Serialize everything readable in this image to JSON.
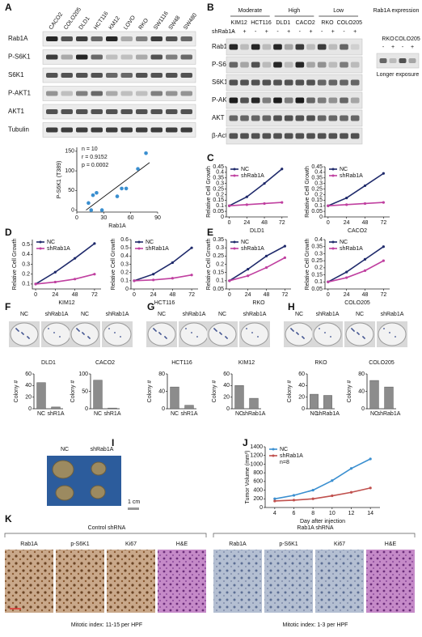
{
  "panel_labels": [
    "A",
    "B",
    "C",
    "D",
    "E",
    "F",
    "G",
    "H",
    "I",
    "J",
    "K"
  ],
  "blot_a": {
    "lanes": [
      "CACO2",
      "COLO205",
      "DLD1",
      "HCT116",
      "KM12",
      "LOVO",
      "RKO",
      "SW1116",
      "SW48",
      "SW480"
    ],
    "rows": [
      "Rab1A",
      "P-S6K1",
      "S6K1",
      "P-AKT1",
      "AKT1",
      "Tubulin"
    ]
  },
  "blot_b": {
    "groups": [
      "Moderate",
      "High",
      "Low"
    ],
    "lanes": [
      "KIM12",
      "HCT116",
      "DLD1",
      "CACO2",
      "RKO",
      "COLO205"
    ],
    "treatment": "shRab1A",
    "signs": [
      "-",
      "+",
      "-",
      "+",
      "-",
      "+",
      "-",
      "+",
      "-",
      "+",
      "-",
      "+"
    ],
    "rows": [
      "Rab1A",
      "P-S6K1",
      "S6K1",
      "P-AKT",
      "AKT",
      "β-Actin"
    ],
    "expression_title": "Rab1A expression",
    "expression_lanes": [
      "RKO",
      "COLO205"
    ],
    "expression_signs": [
      "-",
      "+",
      "-",
      "+"
    ],
    "exposure_note": "Longer exposure"
  },
  "colony_dishes": [
    [
      "NC",
      "shRab1A"
    ],
    [
      "NC",
      "shRab1A"
    ],
    [
      "NC",
      "shRab1A"
    ],
    [
      "NC",
      "shRab1A"
    ],
    [
      "NC",
      "shRab1A"
    ],
    [
      "NC",
      "shRab1A"
    ]
  ],
  "tumor_image": {
    "labels": [
      "NC",
      "shRab1A"
    ],
    "scale_bar": "1 cm"
  },
  "histology": {
    "groups": [
      {
        "title": "Control shRNA",
        "stains": [
          "Rab1A",
          "p-S6K1",
          "Ki67",
          "H&E"
        ],
        "note": "Mitotic index:  11-15 per HPF"
      },
      {
        "title": "Rab1A shRNA",
        "stains": [
          "Rab1A",
          "p-S6K1",
          "Ki67",
          "H&E"
        ],
        "note": "Mitotic index:  1-3 per HPF"
      }
    ]
  },
  "chart_data": [
    {
      "type": "scatter",
      "xlabel": "Rab1A",
      "ylabel": "P-S6K1 (T389)",
      "annotations": [
        "n = 10",
        "r = 0.9152",
        "p = 0.0002"
      ],
      "x": [
        13,
        16,
        18,
        22,
        28,
        45,
        50,
        55,
        68,
        77
      ],
      "values": [
        18,
        0,
        38,
        44,
        0,
        35,
        55,
        55,
        105,
        145
      ],
      "color": "#3a8fd0",
      "xlim": [
        0,
        90
      ],
      "xticks": [
        0,
        30,
        60,
        90
      ],
      "ylim": [
        -5,
        160
      ],
      "yticks": [
        0,
        50,
        100,
        150
      ]
    },
    {
      "type": "line",
      "xlabel": "DLD1",
      "ylabel": "Relative Cell Growth",
      "x": [
        0,
        24,
        48,
        72
      ],
      "xlim": [
        -4,
        80
      ],
      "xticks": [
        0,
        24,
        48,
        72
      ],
      "ylim": [
        0,
        0.45
      ],
      "yticks": [
        0,
        0.05,
        0.1,
        0.15,
        0.2,
        0.25,
        0.3,
        0.35,
        0.4,
        0.45
      ],
      "series": [
        {
          "name": "NC",
          "color": "#1f2a6b",
          "values": [
            0.1,
            0.18,
            0.3,
            0.43
          ]
        },
        {
          "name": "shRab1A",
          "color": "#c040a0",
          "values": [
            0.1,
            0.11,
            0.12,
            0.13
          ]
        }
      ]
    },
    {
      "type": "line",
      "xlabel": "CACO2",
      "ylabel": "Relative Cell Growth",
      "x": [
        0,
        24,
        48,
        72
      ],
      "xlim": [
        -4,
        80
      ],
      "xticks": [
        0,
        24,
        48,
        72
      ],
      "ylim": [
        0,
        0.45
      ],
      "yticks": [
        0,
        0.05,
        0.1,
        0.15,
        0.2,
        0.25,
        0.3,
        0.35,
        0.4,
        0.45
      ],
      "series": [
        {
          "name": "NC",
          "color": "#1f2a6b",
          "values": [
            0.1,
            0.17,
            0.28,
            0.39
          ]
        },
        {
          "name": "shRab1A",
          "color": "#c040a0",
          "values": [
            0.1,
            0.11,
            0.12,
            0.13
          ]
        }
      ]
    },
    {
      "type": "line",
      "xlabel": "KIM12",
      "ylabel": "Relative Cell Growth",
      "x": [
        0,
        24,
        48,
        72
      ],
      "xlim": [
        -4,
        80
      ],
      "xticks": [
        0,
        24,
        48,
        72
      ],
      "ylim": [
        0.05,
        0.55
      ],
      "yticks": [
        0.1,
        0.2,
        0.3,
        0.4,
        0.5
      ],
      "series": [
        {
          "name": "NC",
          "color": "#1f2a6b",
          "values": [
            0.1,
            0.22,
            0.36,
            0.51
          ]
        },
        {
          "name": "shRab1A",
          "color": "#c040a0",
          "values": [
            0.1,
            0.12,
            0.15,
            0.2
          ]
        }
      ]
    },
    {
      "type": "line",
      "xlabel": "HCT116",
      "ylabel": "Relative Cell Growth",
      "x": [
        0,
        24,
        48,
        72
      ],
      "xlim": [
        -4,
        80
      ],
      "xticks": [
        0,
        24,
        48,
        72
      ],
      "ylim": [
        0,
        0.6
      ],
      "yticks": [
        0,
        0.1,
        0.2,
        0.3,
        0.4,
        0.5,
        0.6
      ],
      "series": [
        {
          "name": "NC",
          "color": "#1f2a6b",
          "values": [
            0.1,
            0.18,
            0.32,
            0.5
          ]
        },
        {
          "name": "shRab1A",
          "color": "#c040a0",
          "values": [
            0.1,
            0.11,
            0.13,
            0.17
          ]
        }
      ]
    },
    {
      "type": "line",
      "xlabel": "RKO",
      "ylabel": "Relative Cell Growth",
      "x": [
        0,
        24,
        48,
        72
      ],
      "xlim": [
        -4,
        80
      ],
      "xticks": [
        0,
        24,
        48,
        72
      ],
      "ylim": [
        0.05,
        0.35
      ],
      "yticks": [
        0.05,
        0.1,
        0.15,
        0.2,
        0.25,
        0.3,
        0.35
      ],
      "series": [
        {
          "name": "NC",
          "color": "#1f2a6b",
          "values": [
            0.1,
            0.17,
            0.25,
            0.31
          ]
        },
        {
          "name": "shRab1A",
          "color": "#c040a0",
          "values": [
            0.1,
            0.13,
            0.18,
            0.24
          ]
        }
      ]
    },
    {
      "type": "line",
      "xlabel": "COLO205",
      "ylabel": "Relative Cell Growth",
      "x": [
        0,
        24,
        48,
        72
      ],
      "xlim": [
        -4,
        80
      ],
      "xticks": [
        0,
        24,
        48,
        72
      ],
      "ylim": [
        0.05,
        0.4
      ],
      "yticks": [
        0.05,
        0.1,
        0.15,
        0.2,
        0.25,
        0.3,
        0.35,
        0.4
      ],
      "series": [
        {
          "name": "NC",
          "color": "#1f2a6b",
          "values": [
            0.1,
            0.17,
            0.26,
            0.35
          ]
        },
        {
          "name": "shRab1A",
          "color": "#c040a0",
          "values": [
            0.1,
            0.13,
            0.18,
            0.25
          ]
        }
      ]
    },
    {
      "type": "bar",
      "title": "DLD1",
      "ylabel": "Colony #",
      "categories": [
        "NC",
        "shR1A"
      ],
      "values": [
        45,
        3
      ],
      "color": "#8c8c8c",
      "ylim": [
        0,
        60
      ],
      "yticks": [
        0,
        20,
        40,
        60
      ]
    },
    {
      "type": "bar",
      "title": "CACO2",
      "ylabel": "Colony #",
      "categories": [
        "NC",
        "shR1A"
      ],
      "values": [
        82,
        2
      ],
      "color": "#8c8c8c",
      "ylim": [
        0,
        100
      ],
      "yticks": [
        0,
        50,
        100
      ]
    },
    {
      "type": "bar",
      "title": "HCT116",
      "ylabel": "Colony #",
      "categories": [
        "NC",
        "shR1A"
      ],
      "values": [
        50,
        8
      ],
      "color": "#8c8c8c",
      "ylim": [
        0,
        80
      ],
      "yticks": [
        0,
        40,
        80
      ]
    },
    {
      "type": "bar",
      "title": "KIM12",
      "ylabel": "Colony #",
      "categories": [
        "NC",
        "shRab1A"
      ],
      "values": [
        40,
        18
      ],
      "color": "#8c8c8c",
      "ylim": [
        0,
        60
      ],
      "yticks": [
        0,
        20,
        40,
        60
      ]
    },
    {
      "type": "bar",
      "title": "RKO",
      "ylabel": "Colony #",
      "categories": [
        "NC",
        "shRab1A"
      ],
      "values": [
        25,
        23
      ],
      "color": "#8c8c8c",
      "ylim": [
        0,
        60
      ],
      "yticks": [
        0,
        20,
        40,
        60
      ]
    },
    {
      "type": "bar",
      "title": "COLO205",
      "ylabel": "Colony #",
      "categories": [
        "NC",
        "shRab1A"
      ],
      "values": [
        65,
        50
      ],
      "color": "#8c8c8c",
      "ylim": [
        0,
        80
      ],
      "yticks": [
        0,
        40,
        80
      ]
    },
    {
      "type": "line",
      "xlabel": "Day after injection",
      "ylabel": "Tumor Volume (mm³)",
      "annotations": [
        "n=8"
      ],
      "x": [
        4,
        6,
        8,
        10,
        12,
        14
      ],
      "xlim": [
        3,
        15
      ],
      "xticks": [
        4,
        6,
        8,
        10,
        12,
        14
      ],
      "ylim": [
        0,
        1400
      ],
      "yticks": [
        0,
        200,
        400,
        600,
        800,
        1000,
        1200,
        1400
      ],
      "series": [
        {
          "name": "NC",
          "color": "#3a8fd0",
          "values": [
            200,
            280,
            400,
            620,
            900,
            1120
          ]
        },
        {
          "name": "shRab1A",
          "color": "#c0504d",
          "values": [
            150,
            170,
            200,
            270,
            350,
            450
          ]
        }
      ]
    }
  ]
}
